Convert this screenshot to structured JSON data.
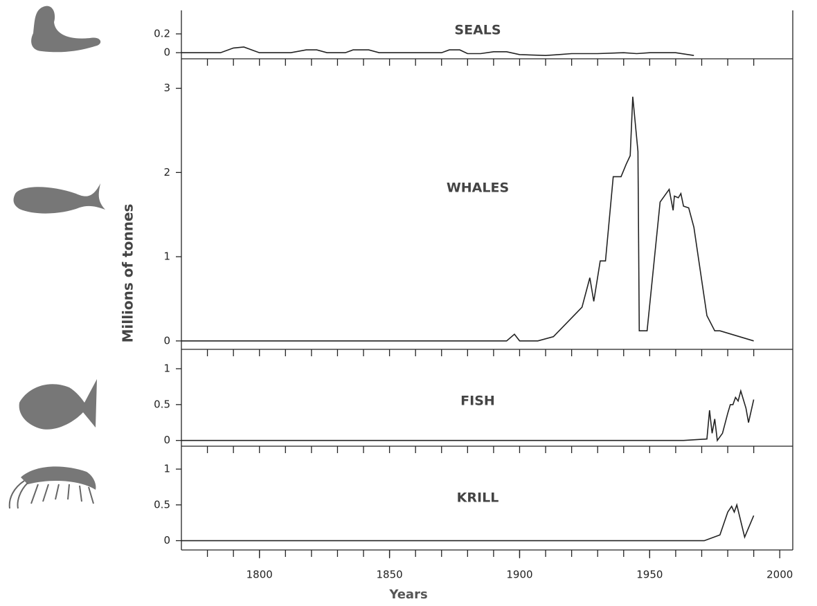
{
  "chart_data": [
    {
      "type": "line",
      "title": "SEALS",
      "color": "#222",
      "x": [
        1770,
        1785,
        1790,
        1794,
        1800,
        1812,
        1818,
        1822,
        1826,
        1833,
        1836,
        1842,
        1846,
        1870,
        1873,
        1877,
        1880,
        1885,
        1890,
        1895,
        1900,
        1910,
        1915,
        1920,
        1930,
        1940,
        1945,
        1950,
        1960,
        1967
      ],
      "values": [
        0,
        0,
        0.05,
        0.06,
        0,
        0,
        0.03,
        0.03,
        0,
        0,
        0.03,
        0.03,
        0,
        0,
        0.03,
        0.03,
        -0.01,
        -0.01,
        0.01,
        0.01,
        -0.02,
        -0.03,
        -0.02,
        -0.01,
        -0.01,
        0,
        -0.01,
        0,
        0,
        -0.03
      ],
      "xlim": [
        1770,
        2005
      ],
      "ylim": [
        -0.065,
        0.45
      ],
      "yticks": [
        0,
        0.2
      ],
      "minor_xticks": [
        1780,
        1790,
        1800,
        1810,
        1820,
        1830,
        1840,
        1850,
        1860,
        1870,
        1880,
        1890,
        1900,
        1910,
        1920,
        1930,
        1940,
        1950,
        1960,
        1970,
        1980,
        1990
      ]
    },
    {
      "type": "line",
      "title": "WHALES",
      "color": "#222",
      "ylabel": "Millions of tonnes",
      "x": [
        1770,
        1895,
        1898,
        1900,
        1907,
        1913,
        1924,
        1927,
        1928.5,
        1931,
        1933,
        1936,
        1939,
        1941,
        1942.5,
        1943.5,
        1945.5,
        1946,
        1949,
        1954,
        1957.5,
        1959,
        1959.5,
        1961,
        1962,
        1963,
        1965,
        1967,
        1972,
        1975,
        1977,
        1990
      ],
      "values": [
        0,
        0,
        0.08,
        0,
        0,
        0.05,
        0.4,
        0.75,
        0.47,
        0.95,
        0.95,
        1.95,
        1.95,
        2.1,
        2.2,
        2.9,
        2.25,
        0.12,
        0.12,
        1.65,
        1.8,
        1.55,
        1.72,
        1.7,
        1.75,
        1.6,
        1.58,
        1.35,
        0.3,
        0.12,
        0.12,
        0
      ],
      "xlim": [
        1770,
        2005
      ],
      "ylim": [
        -0.1,
        3.35
      ],
      "yticks": [
        0,
        1,
        2,
        3
      ],
      "minor_xticks": [
        1780,
        1790,
        1800,
        1810,
        1820,
        1830,
        1840,
        1850,
        1860,
        1870,
        1880,
        1890,
        1900,
        1910,
        1920,
        1930,
        1940,
        1950,
        1960,
        1970,
        1980,
        1990
      ]
    },
    {
      "type": "line",
      "title": "FISH",
      "color": "#222",
      "x": [
        1770,
        1963,
        1972,
        1973,
        1974,
        1975,
        1976,
        1978,
        1980,
        1981,
        1982,
        1983,
        1984,
        1985,
        1987,
        1988,
        1990
      ],
      "values": [
        0,
        0,
        0.02,
        0.42,
        0.1,
        0.3,
        0,
        0.1,
        0.38,
        0.5,
        0.5,
        0.6,
        0.55,
        0.69,
        0.45,
        0.25,
        0.57
      ],
      "xlim": [
        1770,
        2005
      ],
      "ylim": [
        -0.08,
        1.27
      ],
      "yticks": [
        0,
        0.5,
        1
      ],
      "minor_xticks": [
        1780,
        1790,
        1800,
        1810,
        1820,
        1830,
        1840,
        1850,
        1860,
        1870,
        1880,
        1890,
        1900,
        1910,
        1920,
        1930,
        1940,
        1950,
        1960,
        1970,
        1980,
        1990
      ]
    },
    {
      "type": "line",
      "title": "KRILL",
      "color": "#222",
      "xlabel": "Years",
      "x": [
        1770,
        1971,
        1977,
        1980,
        1981.5,
        1982.5,
        1983.5,
        1986.5,
        1990
      ],
      "values": [
        0,
        0,
        0.08,
        0.4,
        0.48,
        0.4,
        0.5,
        0.05,
        0.35
      ],
      "xlim": [
        1770,
        2005
      ],
      "ylim": [
        -0.13,
        1.32
      ],
      "yticks": [
        0,
        0.5,
        1
      ],
      "xticks": [
        1800,
        1850,
        1900,
        1950,
        2000
      ],
      "minor_xticks": [
        1780,
        1790,
        1800,
        1810,
        1820,
        1830,
        1840,
        1850,
        1860,
        1870,
        1880,
        1890,
        1900,
        1910,
        1920,
        1930,
        1940,
        1950,
        1960,
        1970,
        1980,
        1990
      ]
    }
  ]
}
